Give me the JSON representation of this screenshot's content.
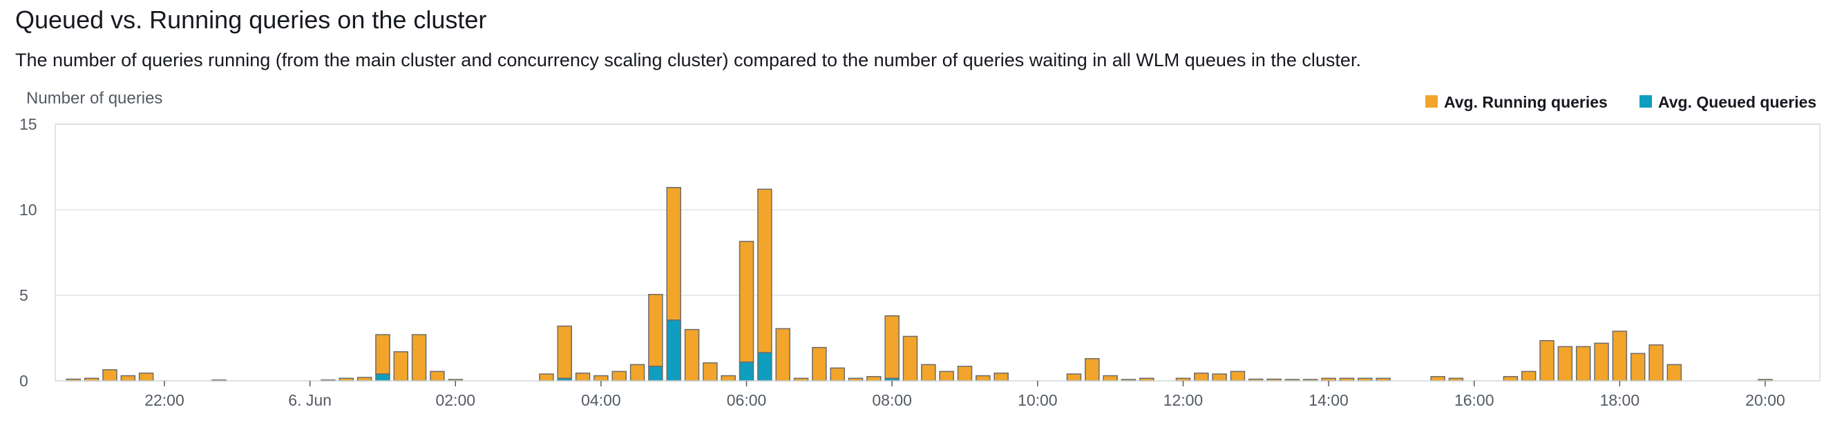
{
  "header": {
    "title": "Queued vs. Running queries on the cluster",
    "description": "The number of queries running (from the main cluster and concurrency scaling cluster) compared to the number of queries waiting in all WLM queues in the cluster."
  },
  "colors": {
    "running": "#f2a52a",
    "queued": "#0f9ebf",
    "bar_stroke": "#6b6b6b"
  },
  "chart_data": {
    "type": "bar",
    "stacked": true,
    "title": "Queued vs. Running queries on the cluster",
    "ylabel": "Number of queries",
    "xlabel": "",
    "ylim": [
      0,
      15
    ],
    "yticks": [
      0,
      5,
      10,
      15
    ],
    "xlim": [
      "2022-06-05T20:30",
      "2022-06-06T20:45"
    ],
    "xticks": [
      "22:00",
      "6. Jun",
      "02:00",
      "04:00",
      "06:00",
      "08:00",
      "10:00",
      "12:00",
      "14:00",
      "16:00",
      "18:00",
      "20:00"
    ],
    "xtick_times": [
      "2022-06-05T22:00",
      "2022-06-06T00:00",
      "2022-06-06T02:00",
      "2022-06-06T04:00",
      "2022-06-06T06:00",
      "2022-06-06T08:00",
      "2022-06-06T10:00",
      "2022-06-06T12:00",
      "2022-06-06T14:00",
      "2022-06-06T16:00",
      "2022-06-06T18:00",
      "2022-06-06T20:00"
    ],
    "grid": true,
    "legend_position": "top-right",
    "series": [
      {
        "name": "Avg. Running queries",
        "color": "#f2a52a",
        "points": [
          [
            "2022-06-05T20:45",
            0.1
          ],
          [
            "2022-06-05T21:00",
            0.15
          ],
          [
            "2022-06-05T21:15",
            0.65
          ],
          [
            "2022-06-05T21:30",
            0.3
          ],
          [
            "2022-06-05T21:45",
            0.45
          ],
          [
            "2022-06-05T22:45",
            0.05
          ],
          [
            "2022-06-06T00:15",
            0.05
          ],
          [
            "2022-06-06T00:30",
            0.15
          ],
          [
            "2022-06-06T00:45",
            0.2
          ],
          [
            "2022-06-06T01:00",
            2.3
          ],
          [
            "2022-06-06T01:15",
            1.7
          ],
          [
            "2022-06-06T01:30",
            2.7
          ],
          [
            "2022-06-06T01:45",
            0.55
          ],
          [
            "2022-06-06T02:00",
            0.08
          ],
          [
            "2022-06-06T03:15",
            0.4
          ],
          [
            "2022-06-06T03:30",
            3.05
          ],
          [
            "2022-06-06T03:45",
            0.45
          ],
          [
            "2022-06-06T04:00",
            0.3
          ],
          [
            "2022-06-06T04:15",
            0.55
          ],
          [
            "2022-06-06T04:30",
            0.95
          ],
          [
            "2022-06-06T04:45",
            4.2
          ],
          [
            "2022-06-06T05:00",
            7.75
          ],
          [
            "2022-06-06T05:15",
            3.0
          ],
          [
            "2022-06-06T05:30",
            1.05
          ],
          [
            "2022-06-06T05:45",
            0.3
          ],
          [
            "2022-06-06T06:00",
            7.05
          ],
          [
            "2022-06-06T06:15",
            9.55
          ],
          [
            "2022-06-06T06:30",
            3.05
          ],
          [
            "2022-06-06T06:45",
            0.15
          ],
          [
            "2022-06-06T07:00",
            1.95
          ],
          [
            "2022-06-06T07:15",
            0.75
          ],
          [
            "2022-06-06T07:30",
            0.15
          ],
          [
            "2022-06-06T07:45",
            0.25
          ],
          [
            "2022-06-06T08:00",
            3.65
          ],
          [
            "2022-06-06T08:15",
            2.6
          ],
          [
            "2022-06-06T08:30",
            0.95
          ],
          [
            "2022-06-06T08:45",
            0.55
          ],
          [
            "2022-06-06T09:00",
            0.85
          ],
          [
            "2022-06-06T09:15",
            0.3
          ],
          [
            "2022-06-06T09:30",
            0.45
          ],
          [
            "2022-06-06T10:30",
            0.4
          ],
          [
            "2022-06-06T10:45",
            1.3
          ],
          [
            "2022-06-06T11:00",
            0.3
          ],
          [
            "2022-06-06T11:15",
            0.08
          ],
          [
            "2022-06-06T11:30",
            0.15
          ],
          [
            "2022-06-06T12:00",
            0.15
          ],
          [
            "2022-06-06T12:15",
            0.45
          ],
          [
            "2022-06-06T12:30",
            0.4
          ],
          [
            "2022-06-06T12:45",
            0.55
          ],
          [
            "2022-06-06T13:00",
            0.1
          ],
          [
            "2022-06-06T13:15",
            0.1
          ],
          [
            "2022-06-06T13:30",
            0.08
          ],
          [
            "2022-06-06T13:45",
            0.08
          ],
          [
            "2022-06-06T14:00",
            0.15
          ],
          [
            "2022-06-06T14:15",
            0.15
          ],
          [
            "2022-06-06T14:30",
            0.15
          ],
          [
            "2022-06-06T14:45",
            0.15
          ],
          [
            "2022-06-06T15:30",
            0.25
          ],
          [
            "2022-06-06T15:45",
            0.15
          ],
          [
            "2022-06-06T16:30",
            0.25
          ],
          [
            "2022-06-06T16:45",
            0.55
          ],
          [
            "2022-06-06T17:00",
            2.35
          ],
          [
            "2022-06-06T17:15",
            2.0
          ],
          [
            "2022-06-06T17:30",
            2.0
          ],
          [
            "2022-06-06T17:45",
            2.2
          ],
          [
            "2022-06-06T18:00",
            2.9
          ],
          [
            "2022-06-06T18:15",
            1.6
          ],
          [
            "2022-06-06T18:30",
            2.1
          ],
          [
            "2022-06-06T18:45",
            0.95
          ],
          [
            "2022-06-06T20:00",
            0.08
          ]
        ]
      },
      {
        "name": "Avg. Queued queries",
        "color": "#0f9ebf",
        "points": [
          [
            "2022-06-06T01:00",
            0.4
          ],
          [
            "2022-06-06T03:30",
            0.15
          ],
          [
            "2022-06-06T04:45",
            0.85
          ],
          [
            "2022-06-06T05:00",
            3.55
          ],
          [
            "2022-06-06T06:00",
            1.1
          ],
          [
            "2022-06-06T06:15",
            1.65
          ],
          [
            "2022-06-06T08:00",
            0.15
          ]
        ]
      }
    ]
  }
}
